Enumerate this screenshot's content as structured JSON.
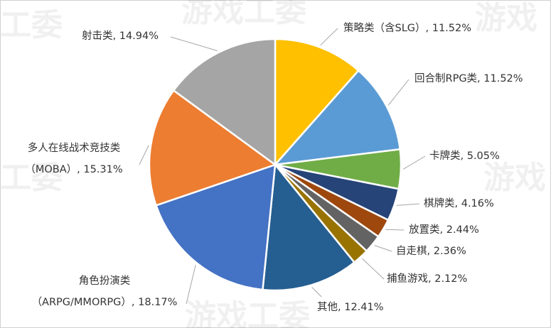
{
  "watermark": {
    "text_a": "游戏工委",
    "text_b": "工委",
    "text_c": "游戏"
  },
  "chart_data": {
    "type": "pie",
    "title": "",
    "legend": "none",
    "slices": [
      {
        "label": "策略类（含SLG）",
        "value": 11.52,
        "display": "策略类（含SLG）, 11.52%",
        "color": "#FFC000"
      },
      {
        "label": "回合制RPG类",
        "value": 11.52,
        "display": "回合制RPG类, 11.52%",
        "color": "#5B9BD5"
      },
      {
        "label": "卡牌类",
        "value": 5.05,
        "display": "卡牌类, 5.05%",
        "color": "#70AD47"
      },
      {
        "label": "棋牌类",
        "value": 4.16,
        "display": "棋牌类, 4.16%",
        "color": "#264478"
      },
      {
        "label": "放置类",
        "value": 2.44,
        "display": "放置类, 2.44%",
        "color": "#9E480E"
      },
      {
        "label": "自走棋",
        "value": 2.36,
        "display": "自走棋, 2.36%",
        "color": "#636363"
      },
      {
        "label": "捕鱼游戏",
        "value": 2.12,
        "display": "捕鱼游戏, 2.12%",
        "color": "#997300"
      },
      {
        "label": "其他",
        "value": 12.41,
        "display": "其他, 12.41%",
        "color": "#255E91"
      },
      {
        "label": "角色扮演类（ARPG/MMORPG）",
        "value": 18.17,
        "display_line1": "角色扮演类",
        "display_line2": "（ARPG/MMORPG）, 18.17%",
        "color": "#4472C4"
      },
      {
        "label": "多人在线战术竞技类（MOBA）",
        "value": 15.31,
        "display_line1": "多人在线战术竞技类",
        "display_line2": "（MOBA）, 15.31%",
        "color": "#ED7D31"
      },
      {
        "label": "射击类",
        "value": 14.94,
        "display": "射击类, 14.94%",
        "color": "#A5A5A5"
      }
    ]
  }
}
